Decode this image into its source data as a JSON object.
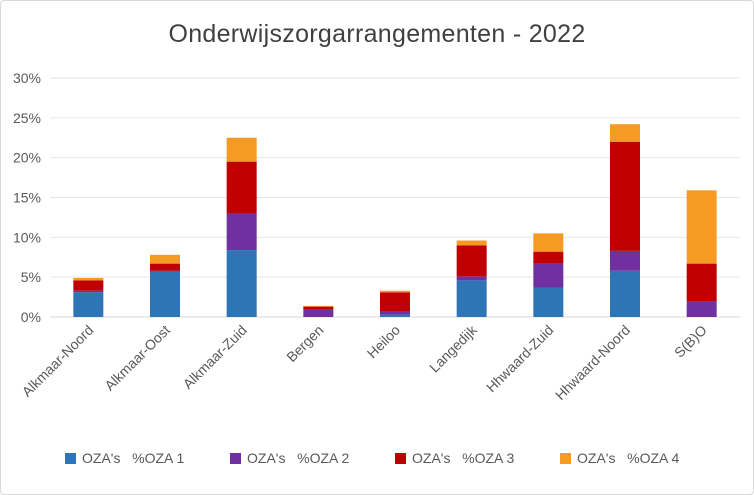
{
  "chart_data": {
    "type": "bar",
    "stacked": true,
    "title": "Onderwijszorgarrangementen  - 2022",
    "xlabel": "",
    "ylabel": "",
    "ylim": [
      0,
      0.3
    ],
    "yticks": [
      "0%",
      "5%",
      "10%",
      "15%",
      "20%",
      "25%",
      "30%"
    ],
    "grid": true,
    "legend_position": "bottom",
    "categories": [
      "Alkmaar-Noord",
      "Alkmaar-Oost",
      "Alkmaar-Zuid",
      "Bergen",
      "Heiloo",
      "Langedijk",
      "Hhwaard-Zuid",
      "Hhwaard-Noord",
      "S(B)O"
    ],
    "series": [
      {
        "name": "OZA's   %OZA 1",
        "color": "#2e75b6",
        "values": [
          0.031,
          0.057,
          0.084,
          0.0,
          0.003,
          0.046,
          0.037,
          0.058,
          0.0
        ]
      },
      {
        "name": "OZA's   %OZA 2",
        "color": "#7030a0",
        "values": [
          0.002,
          0.001,
          0.046,
          0.01,
          0.004,
          0.005,
          0.03,
          0.025,
          0.02
        ]
      },
      {
        "name": "OZA's   %OZA 3",
        "color": "#c00000",
        "values": [
          0.013,
          0.009,
          0.065,
          0.003,
          0.024,
          0.039,
          0.015,
          0.137,
          0.047
        ]
      },
      {
        "name": "OZA's   %OZA 4",
        "color": "#f59a23",
        "values": [
          0.003,
          0.011,
          0.03,
          0.001,
          0.002,
          0.006,
          0.023,
          0.022,
          0.092
        ]
      }
    ]
  }
}
